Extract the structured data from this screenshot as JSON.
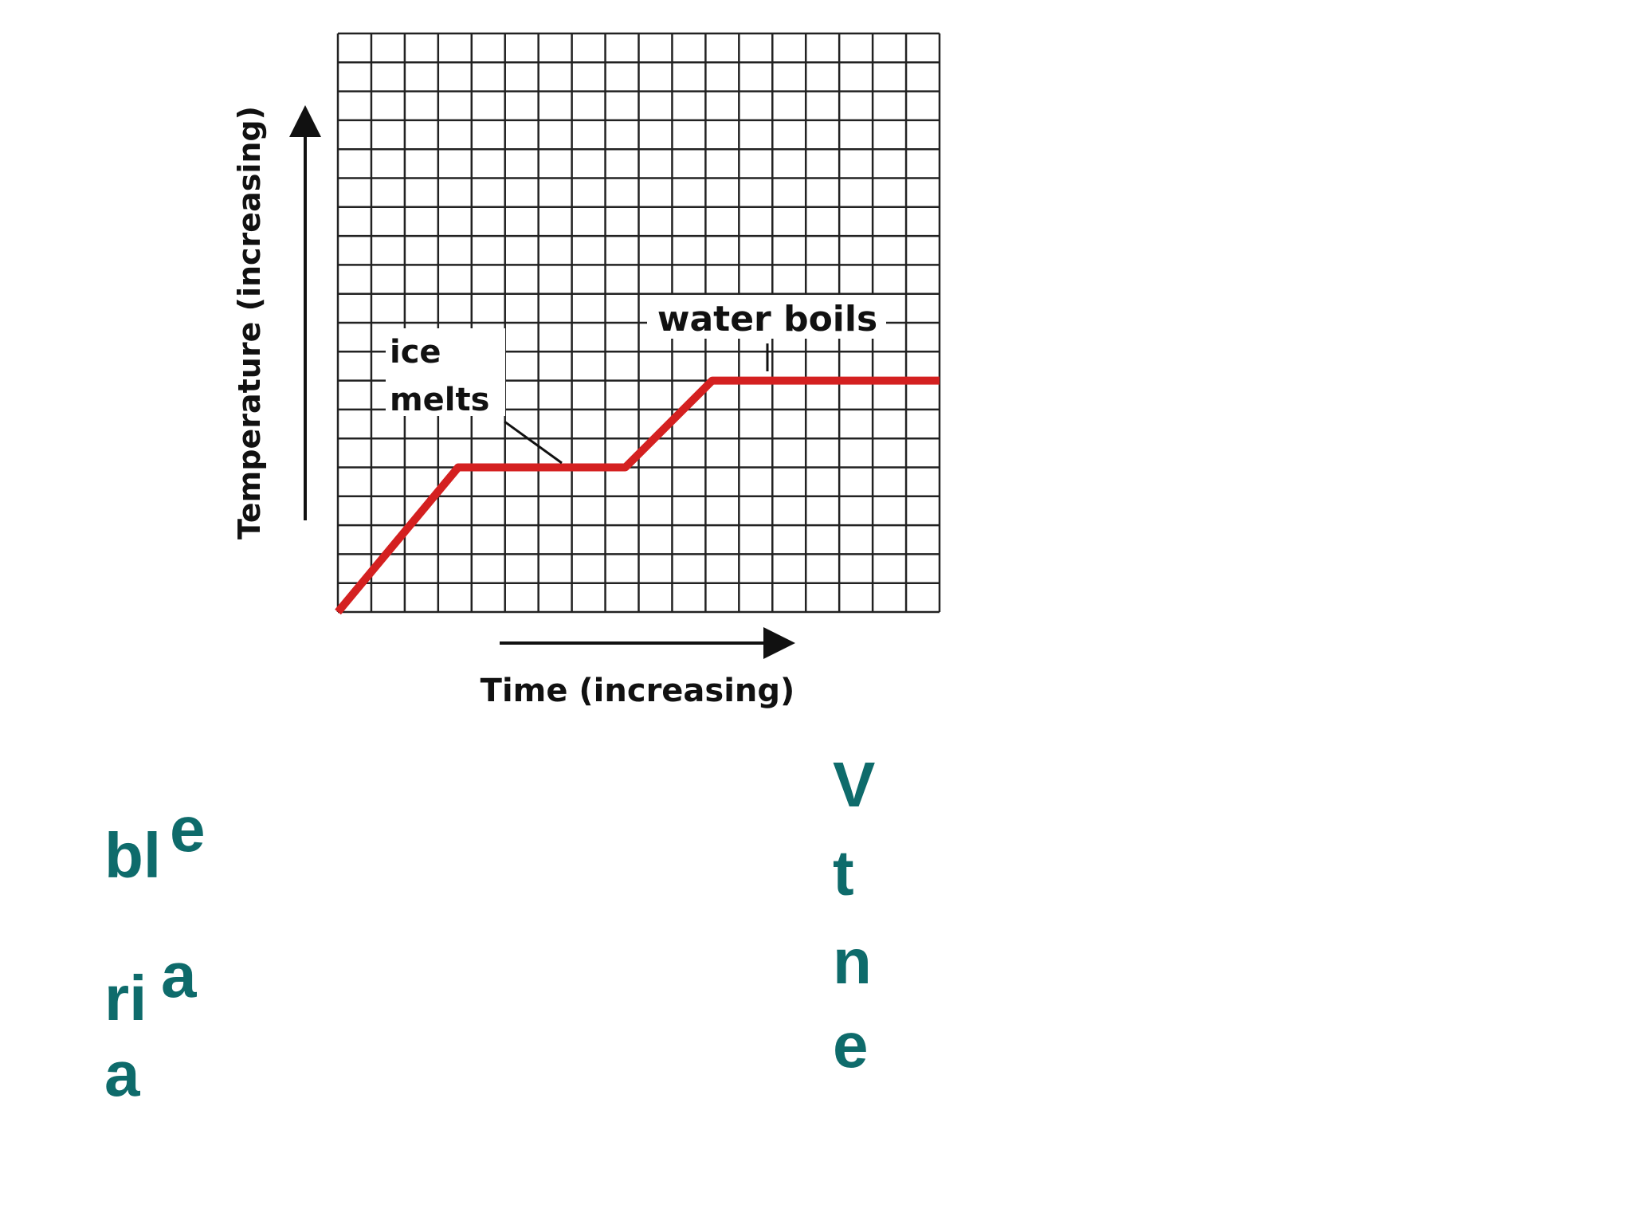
{
  "chart_data": {
    "type": "line",
    "y_label": "Temperature (increasing)",
    "x_label": "Time (increasing)",
    "annotations": [
      "ice",
      "melts",
      "water boils"
    ],
    "x": [
      0,
      3.6,
      8.6,
      11.2,
      18
    ],
    "values": [
      0,
      5,
      5,
      8,
      8
    ],
    "color": "#d42020",
    "xlim": [
      0,
      18
    ],
    "ylim": [
      0,
      20
    ],
    "grid": true
  },
  "text_fragments": [
    "bl",
    "e",
    "ri",
    "a",
    "a",
    "V",
    "t",
    "n",
    "e"
  ]
}
